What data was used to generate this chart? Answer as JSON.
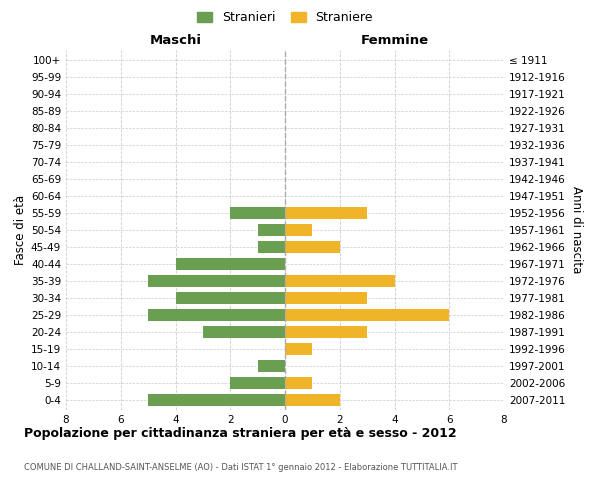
{
  "age_groups": [
    "0-4",
    "5-9",
    "10-14",
    "15-19",
    "20-24",
    "25-29",
    "30-34",
    "35-39",
    "40-44",
    "45-49",
    "50-54",
    "55-59",
    "60-64",
    "65-69",
    "70-74",
    "75-79",
    "80-84",
    "85-89",
    "90-94",
    "95-99",
    "100+"
  ],
  "birth_years": [
    "2007-2011",
    "2002-2006",
    "1997-2001",
    "1992-1996",
    "1987-1991",
    "1982-1986",
    "1977-1981",
    "1972-1976",
    "1967-1971",
    "1962-1966",
    "1957-1961",
    "1952-1956",
    "1947-1951",
    "1942-1946",
    "1937-1941",
    "1932-1936",
    "1927-1931",
    "1922-1926",
    "1917-1921",
    "1912-1916",
    "≤ 1911"
  ],
  "males": [
    5,
    2,
    1,
    0,
    3,
    5,
    4,
    5,
    4,
    1,
    1,
    2,
    0,
    0,
    0,
    0,
    0,
    0,
    0,
    0,
    0
  ],
  "females": [
    2,
    1,
    0,
    1,
    3,
    6,
    3,
    4,
    0,
    2,
    1,
    3,
    0,
    0,
    0,
    0,
    0,
    0,
    0,
    0,
    0
  ],
  "male_color": "#6a9e50",
  "female_color": "#f0b429",
  "title": "Popolazione per cittadinanza straniera per età e sesso - 2012",
  "subtitle": "COMUNE DI CHALLAND-SAINT-ANSELME (AO) - Dati ISTAT 1° gennaio 2012 - Elaborazione TUTTITALIA.IT",
  "ylabel_left": "Fasce di età",
  "ylabel_right": "Anni di nascita",
  "legend_male": "Stranieri",
  "legend_female": "Straniere",
  "xlim": 8,
  "maschi_label": "Maschi",
  "femmine_label": "Femmine",
  "background_color": "#ffffff",
  "grid_color": "#cccccc"
}
